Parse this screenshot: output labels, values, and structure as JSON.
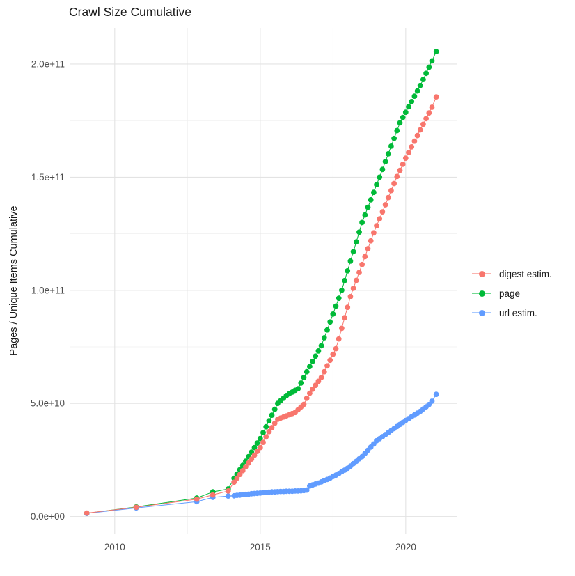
{
  "chart_data": {
    "type": "scatter",
    "title": "Crawl Size Cumulative",
    "xlabel": "",
    "ylabel": "Pages / Unique Items Cumulative",
    "value_unit": "items, stored as multiples of 1e9",
    "xlim": [
      2008.45,
      2021.75
    ],
    "ylim_e9": [
      -7.5,
      216
    ],
    "grid": true,
    "legend_position": "right",
    "x_major_ticks": [
      {
        "v": 2010,
        "label": "2010"
      },
      {
        "v": 2015,
        "label": "2015"
      },
      {
        "v": 2020,
        "label": "2020"
      }
    ],
    "x_minor_ticks": [
      2012.5,
      2017.5
    ],
    "y_major_ticks": [
      {
        "v": 0,
        "label": "0.0e+00"
      },
      {
        "v": 50,
        "label": "5.0e+10"
      },
      {
        "v": 100,
        "label": "1.0e+11"
      },
      {
        "v": 150,
        "label": "1.5e+11"
      },
      {
        "v": 200,
        "label": "2.0e+11"
      }
    ],
    "y_minor_ticks": [
      25,
      75,
      125,
      175
    ],
    "series": [
      {
        "name": "digest estim.",
        "color": "#F8766D",
        "z": 2,
        "points": [
          [
            2009.04,
            1.55
          ],
          [
            2010.74,
            4.1
          ],
          [
            2012.82,
            7.7
          ],
          [
            2013.37,
            9.6
          ],
          [
            2013.9,
            11.3
          ],
          [
            2014.1,
            15.2
          ],
          [
            2014.2,
            16.9
          ],
          [
            2014.3,
            18.6
          ],
          [
            2014.4,
            20.3
          ],
          [
            2014.5,
            22.0
          ],
          [
            2014.6,
            23.7
          ],
          [
            2014.7,
            25.4
          ],
          [
            2014.8,
            27.1
          ],
          [
            2014.9,
            28.8
          ],
          [
            2015.0,
            30.5
          ],
          [
            2015.1,
            32.8
          ],
          [
            2015.2,
            35.2
          ],
          [
            2015.3,
            37.5
          ],
          [
            2015.4,
            39.3
          ],
          [
            2015.5,
            41.2
          ],
          [
            2015.6,
            43.0
          ],
          [
            2015.7,
            43.5
          ],
          [
            2015.8,
            44.0
          ],
          [
            2015.9,
            44.5
          ],
          [
            2016.0,
            45.0
          ],
          [
            2016.1,
            45.5
          ],
          [
            2016.2,
            46.0
          ],
          [
            2016.3,
            47.2
          ],
          [
            2016.4,
            48.4
          ],
          [
            2016.5,
            49.6
          ],
          [
            2016.6,
            52.3
          ],
          [
            2016.7,
            54.5
          ],
          [
            2016.8,
            56.3
          ],
          [
            2016.9,
            58.0
          ],
          [
            2017.0,
            59.8
          ],
          [
            2017.1,
            61.5
          ],
          [
            2017.2,
            64.0
          ],
          [
            2017.3,
            66.6
          ],
          [
            2017.4,
            69.1
          ],
          [
            2017.5,
            71.7
          ],
          [
            2017.6,
            74.2
          ],
          [
            2017.7,
            78.5
          ],
          [
            2017.8,
            83.2
          ],
          [
            2017.9,
            87.9
          ],
          [
            2018.0,
            92.5
          ],
          [
            2018.1,
            97.2
          ],
          [
            2018.2,
            100.9
          ],
          [
            2018.3,
            104.4
          ],
          [
            2018.4,
            107.9
          ],
          [
            2018.5,
            111.4
          ],
          [
            2018.6,
            114.9
          ],
          [
            2018.7,
            118.4
          ],
          [
            2018.8,
            121.9
          ],
          [
            2018.9,
            125.4
          ],
          [
            2019.0,
            128.5
          ],
          [
            2019.1,
            131.6
          ],
          [
            2019.2,
            134.7
          ],
          [
            2019.3,
            137.8
          ],
          [
            2019.4,
            141.0
          ],
          [
            2019.5,
            144.1
          ],
          [
            2019.6,
            147.2
          ],
          [
            2019.7,
            150.3
          ],
          [
            2019.8,
            153.0
          ],
          [
            2019.9,
            155.7
          ],
          [
            2020.0,
            158.4
          ],
          [
            2020.1,
            160.9
          ],
          [
            2020.2,
            163.4
          ],
          [
            2020.3,
            165.9
          ],
          [
            2020.4,
            168.4
          ],
          [
            2020.5,
            170.9
          ],
          [
            2020.6,
            173.4
          ],
          [
            2020.7,
            175.9
          ],
          [
            2020.8,
            178.4
          ],
          [
            2020.9,
            180.9
          ],
          [
            2021.05,
            185.5
          ]
        ]
      },
      {
        "name": "page",
        "color": "#00BA38",
        "z": 0,
        "points": [
          [
            2009.04,
            1.45
          ],
          [
            2010.74,
            4.25
          ],
          [
            2012.82,
            8.2
          ],
          [
            2013.37,
            10.9
          ],
          [
            2013.9,
            12.2
          ],
          [
            2014.1,
            16.9
          ],
          [
            2014.2,
            18.8
          ],
          [
            2014.3,
            20.7
          ],
          [
            2014.4,
            22.6
          ],
          [
            2014.5,
            24.5
          ],
          [
            2014.6,
            26.5
          ],
          [
            2014.7,
            28.5
          ],
          [
            2014.8,
            30.5
          ],
          [
            2014.9,
            32.5
          ],
          [
            2015.0,
            34.5
          ],
          [
            2015.1,
            37.1
          ],
          [
            2015.2,
            39.7
          ],
          [
            2015.3,
            42.3
          ],
          [
            2015.4,
            44.8
          ],
          [
            2015.5,
            47.4
          ],
          [
            2015.6,
            50.0
          ],
          [
            2015.7,
            51.2
          ],
          [
            2015.8,
            52.3
          ],
          [
            2015.9,
            53.5
          ],
          [
            2016.0,
            54.3
          ],
          [
            2016.1,
            55.0
          ],
          [
            2016.2,
            55.8
          ],
          [
            2016.3,
            56.5
          ],
          [
            2016.4,
            59.0
          ],
          [
            2016.5,
            61.5
          ],
          [
            2016.6,
            64.0
          ],
          [
            2016.7,
            66.3
          ],
          [
            2016.8,
            68.6
          ],
          [
            2016.9,
            70.9
          ],
          [
            2017.0,
            73.2
          ],
          [
            2017.1,
            75.5
          ],
          [
            2017.2,
            79.0
          ],
          [
            2017.3,
            82.5
          ],
          [
            2017.4,
            86.0
          ],
          [
            2017.5,
            89.5
          ],
          [
            2017.6,
            93.0
          ],
          [
            2017.7,
            96.5
          ],
          [
            2017.8,
            100.0
          ],
          [
            2017.9,
            104.3
          ],
          [
            2018.0,
            108.6
          ],
          [
            2018.1,
            112.9
          ],
          [
            2018.2,
            117.1
          ],
          [
            2018.3,
            121.4
          ],
          [
            2018.4,
            125.7
          ],
          [
            2018.5,
            130.0
          ],
          [
            2018.6,
            133.3
          ],
          [
            2018.7,
            136.7
          ],
          [
            2018.8,
            140.0
          ],
          [
            2018.9,
            143.3
          ],
          [
            2019.0,
            146.7
          ],
          [
            2019.1,
            150.0
          ],
          [
            2019.2,
            153.4
          ],
          [
            2019.3,
            156.9
          ],
          [
            2019.4,
            160.3
          ],
          [
            2019.5,
            163.7
          ],
          [
            2019.6,
            167.1
          ],
          [
            2019.7,
            170.6
          ],
          [
            2019.8,
            174.0
          ],
          [
            2019.9,
            176.4
          ],
          [
            2020.0,
            178.7
          ],
          [
            2020.1,
            181.1
          ],
          [
            2020.2,
            183.4
          ],
          [
            2020.3,
            185.8
          ],
          [
            2020.4,
            188.1
          ],
          [
            2020.5,
            190.5
          ],
          [
            2020.6,
            193.2
          ],
          [
            2020.7,
            195.9
          ],
          [
            2020.8,
            198.6
          ],
          [
            2020.9,
            201.4
          ],
          [
            2021.05,
            205.5
          ]
        ]
      },
      {
        "name": "url estim.",
        "color": "#619CFF",
        "z": 1,
        "points": [
          [
            2009.04,
            1.4
          ],
          [
            2010.74,
            3.8
          ],
          [
            2012.82,
            6.6
          ],
          [
            2013.37,
            8.5
          ],
          [
            2013.9,
            9.1
          ],
          [
            2014.1,
            9.2
          ],
          [
            2014.2,
            9.4
          ],
          [
            2014.3,
            9.5
          ],
          [
            2014.4,
            9.7
          ],
          [
            2014.5,
            9.8
          ],
          [
            2014.6,
            9.9
          ],
          [
            2014.7,
            10.1
          ],
          [
            2014.8,
            10.2
          ],
          [
            2014.9,
            10.3
          ],
          [
            2015.0,
            10.4
          ],
          [
            2015.1,
            10.6
          ],
          [
            2015.2,
            10.7
          ],
          [
            2015.3,
            10.8
          ],
          [
            2015.4,
            10.9
          ],
          [
            2015.5,
            10.9
          ],
          [
            2015.6,
            11.0
          ],
          [
            2015.7,
            11.1
          ],
          [
            2015.8,
            11.1
          ],
          [
            2015.9,
            11.2
          ],
          [
            2016.0,
            11.2
          ],
          [
            2016.1,
            11.2
          ],
          [
            2016.2,
            11.3
          ],
          [
            2016.3,
            11.3
          ],
          [
            2016.4,
            11.4
          ],
          [
            2016.5,
            11.5
          ],
          [
            2016.6,
            11.7
          ],
          [
            2016.7,
            13.5
          ],
          [
            2016.8,
            14.0
          ],
          [
            2016.9,
            14.4
          ],
          [
            2017.0,
            14.8
          ],
          [
            2017.1,
            15.3
          ],
          [
            2017.2,
            15.9
          ],
          [
            2017.3,
            16.4
          ],
          [
            2017.4,
            17.0
          ],
          [
            2017.5,
            17.7
          ],
          [
            2017.6,
            18.3
          ],
          [
            2017.7,
            19.0
          ],
          [
            2017.8,
            19.8
          ],
          [
            2017.9,
            20.5
          ],
          [
            2018.0,
            21.3
          ],
          [
            2018.1,
            22.3
          ],
          [
            2018.2,
            23.4
          ],
          [
            2018.3,
            24.4
          ],
          [
            2018.4,
            25.5
          ],
          [
            2018.5,
            26.5
          ],
          [
            2018.6,
            27.9
          ],
          [
            2018.7,
            29.3
          ],
          [
            2018.8,
            30.7
          ],
          [
            2018.9,
            32.1
          ],
          [
            2019.0,
            33.5
          ],
          [
            2019.1,
            34.4
          ],
          [
            2019.2,
            35.3
          ],
          [
            2019.3,
            36.2
          ],
          [
            2019.4,
            37.1
          ],
          [
            2019.5,
            38.0
          ],
          [
            2019.6,
            38.9
          ],
          [
            2019.7,
            39.8
          ],
          [
            2019.8,
            40.7
          ],
          [
            2019.9,
            41.6
          ],
          [
            2020.0,
            42.5
          ],
          [
            2020.1,
            43.3
          ],
          [
            2020.2,
            44.1
          ],
          [
            2020.3,
            44.9
          ],
          [
            2020.4,
            45.7
          ],
          [
            2020.5,
            46.5
          ],
          [
            2020.6,
            47.5
          ],
          [
            2020.7,
            48.5
          ],
          [
            2020.8,
            49.5
          ],
          [
            2020.9,
            51.0
          ],
          [
            2021.05,
            54.0
          ]
        ]
      }
    ],
    "style": {
      "grid_major_color": "#E3E3E3",
      "grid_minor_color": "#EFEFEF",
      "tick_label_color": "#4D4D4D",
      "text_color": "#1a1a1a",
      "point_radius": 3.9,
      "line_width": 1
    }
  }
}
